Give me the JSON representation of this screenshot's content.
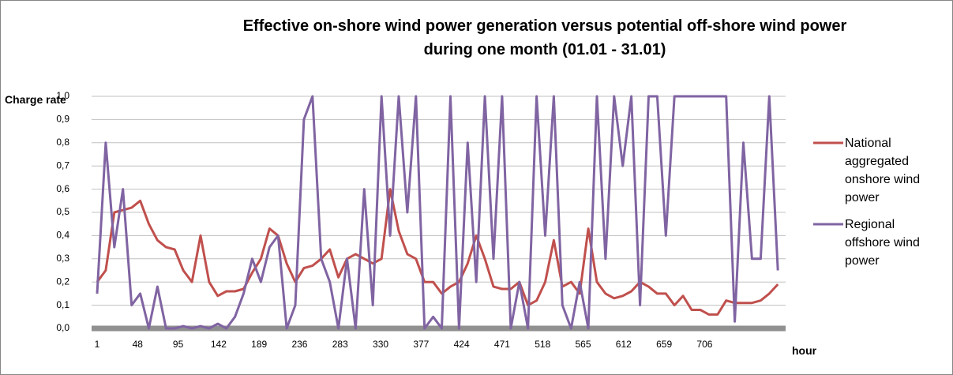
{
  "chart_data": {
    "type": "line",
    "title": "Effective on-shore wind power generation versus potential off-shore wind power during one month (01.01 - 31.01)",
    "y_label": "Charge rate",
    "x_label": "hour",
    "x": [
      1,
      11,
      21,
      31,
      41,
      51,
      61,
      71,
      81,
      91,
      101,
      111,
      121,
      131,
      141,
      151,
      161,
      171,
      181,
      191,
      201,
      211,
      221,
      231,
      241,
      251,
      261,
      271,
      281,
      291,
      301,
      311,
      321,
      331,
      341,
      351,
      361,
      371,
      381,
      391,
      401,
      411,
      421,
      431,
      441,
      451,
      461,
      471,
      481,
      491,
      501,
      511,
      521,
      531,
      541,
      551,
      561,
      571,
      581,
      591,
      601,
      611,
      621,
      631,
      641,
      651,
      661,
      671,
      681,
      691,
      701,
      711,
      721,
      731,
      741,
      751,
      761,
      771,
      781,
      791
    ],
    "series": [
      {
        "name": "National aggregated onshore wind power",
        "color": "#c0504d",
        "values": [
          0.2,
          0.25,
          0.5,
          0.51,
          0.52,
          0.55,
          0.45,
          0.38,
          0.35,
          0.34,
          0.25,
          0.2,
          0.4,
          0.2,
          0.14,
          0.16,
          0.16,
          0.17,
          0.24,
          0.3,
          0.43,
          0.4,
          0.28,
          0.2,
          0.26,
          0.27,
          0.3,
          0.34,
          0.22,
          0.3,
          0.32,
          0.3,
          0.28,
          0.3,
          0.6,
          0.42,
          0.32,
          0.3,
          0.2,
          0.2,
          0.15,
          0.18,
          0.2,
          0.28,
          0.4,
          0.3,
          0.18,
          0.17,
          0.17,
          0.2,
          0.1,
          0.12,
          0.2,
          0.38,
          0.18,
          0.2,
          0.15,
          0.43,
          0.2,
          0.15,
          0.13,
          0.14,
          0.16,
          0.2,
          0.18,
          0.15,
          0.15,
          0.1,
          0.14,
          0.08,
          0.08,
          0.06,
          0.06,
          0.12,
          0.11,
          0.11,
          0.11,
          0.12,
          0.15,
          0.19
        ]
      },
      {
        "name": "Regional offshore wind power",
        "color": "#8064a2",
        "values": [
          0.15,
          0.8,
          0.35,
          0.6,
          0.1,
          0.15,
          0.0,
          0.18,
          0.0,
          0.0,
          0.01,
          0.0,
          0.01,
          0.0,
          0.02,
          0.0,
          0.05,
          0.15,
          0.3,
          0.2,
          0.35,
          0.4,
          0.0,
          0.1,
          0.9,
          1.0,
          0.3,
          0.2,
          0.0,
          0.3,
          0.0,
          0.6,
          0.1,
          1.0,
          0.4,
          1.0,
          0.5,
          1.0,
          0.0,
          0.05,
          0.0,
          1.0,
          0.0,
          0.8,
          0.2,
          1.0,
          0.3,
          1.0,
          0.0,
          0.2,
          0.0,
          1.0,
          0.4,
          1.0,
          0.1,
          0.0,
          0.2,
          0.0,
          1.0,
          0.3,
          1.0,
          0.7,
          1.0,
          0.1,
          1.0,
          1.0,
          0.4,
          1.0,
          1.0,
          1.0,
          1.0,
          1.0,
          1.0,
          1.0,
          0.03,
          0.8,
          0.3,
          0.3,
          1.0,
          0.25
        ]
      }
    ],
    "xlim": [
      1,
      800
    ],
    "xticks": [
      1,
      48,
      95,
      142,
      189,
      236,
      283,
      330,
      377,
      424,
      471,
      518,
      565,
      612,
      659,
      706
    ],
    "ylim": [
      0,
      1
    ],
    "yticks": [
      {
        "value": 0,
        "label": "0,0"
      },
      {
        "value": 0.1,
        "label": "0,1"
      },
      {
        "value": 0.2,
        "label": "0,2"
      },
      {
        "value": 0.3,
        "label": "0,3"
      },
      {
        "value": 0.4,
        "label": "0,4"
      },
      {
        "value": 0.5,
        "label": "0,5"
      },
      {
        "value": 0.6,
        "label": "0,6"
      },
      {
        "value": 0.7,
        "label": "0,7"
      },
      {
        "value": 0.8,
        "label": "0,8"
      },
      {
        "value": 0.9,
        "label": "0,9"
      },
      {
        "value": 1,
        "label": "1,0"
      }
    ],
    "grid": true,
    "legend": "right"
  }
}
